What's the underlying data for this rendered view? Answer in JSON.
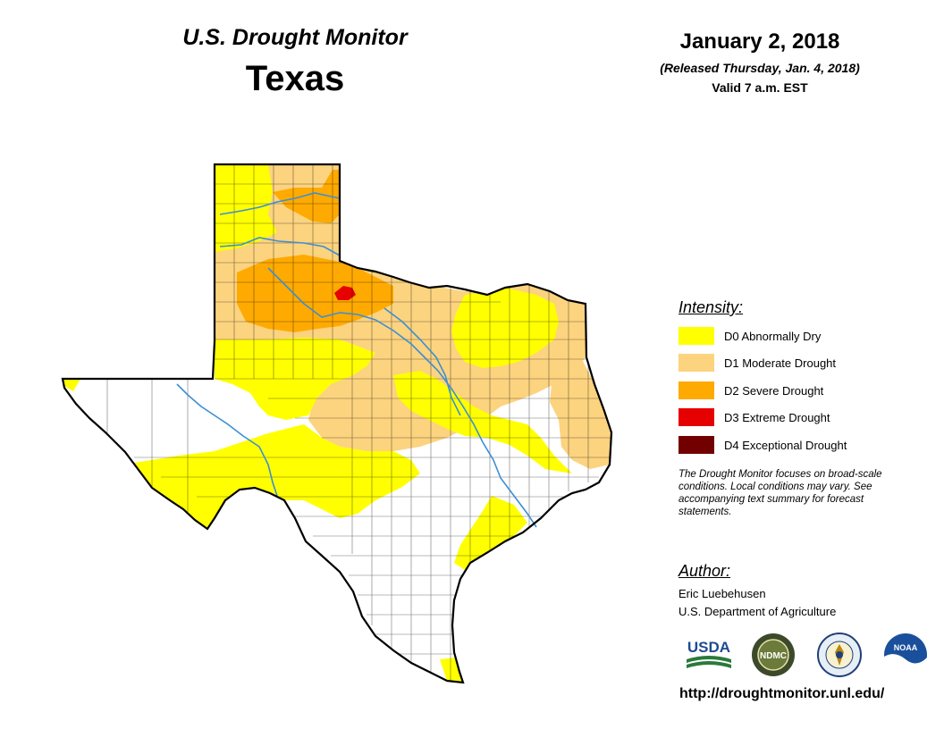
{
  "header": {
    "title": "U.S. Drought Monitor",
    "region": "Texas",
    "date": "January 2, 2018",
    "released": "(Released Thursday, Jan. 4, 2018)",
    "valid": "Valid 7 a.m. EST"
  },
  "legend": {
    "heading": "Intensity:",
    "items": [
      {
        "label": "D0 Abnormally Dry",
        "color": "#ffff00"
      },
      {
        "label": "D1 Moderate Drought",
        "color": "#fcd37f"
      },
      {
        "label": "D2 Severe Drought",
        "color": "#ffaa00"
      },
      {
        "label": "D3 Extreme Drought",
        "color": "#e60000"
      },
      {
        "label": "D4 Exceptional Drought",
        "color": "#730000"
      }
    ]
  },
  "note": "The Drought Monitor focuses on broad-scale conditions. Local conditions may vary. See accompanying text summary for forecast statements.",
  "author": {
    "heading": "Author:",
    "name": "Eric Luebehusen",
    "org": "U.S. Department of Agriculture"
  },
  "logos": {
    "usda": "USDA",
    "ndmc": "NDMC",
    "doc": "commerce-seal-icon",
    "noaa": "NOAA"
  },
  "url": "http://droughtmonitor.unl.edu/",
  "map": {
    "region_name": "Texas",
    "river_color": "#3b8fd6",
    "border_color": "#000000"
  }
}
